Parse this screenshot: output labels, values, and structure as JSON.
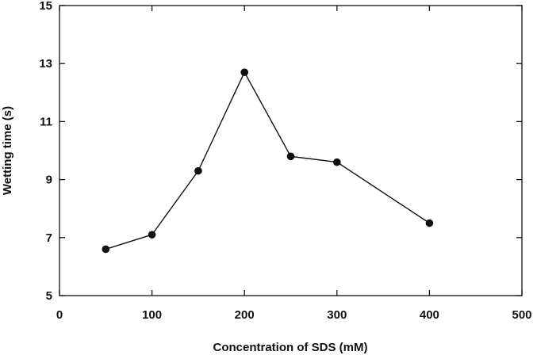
{
  "chart_data": {
    "type": "line",
    "title": "",
    "xlabel": "Concentration of SDS (mM)",
    "ylabel": "Wetting time (s)",
    "xlim": [
      0,
      500
    ],
    "ylim": [
      5,
      15
    ],
    "xticks": [
      0,
      100,
      200,
      300,
      400,
      500
    ],
    "yticks": [
      5,
      7,
      9,
      11,
      13,
      15
    ],
    "grid": false,
    "legend": "none",
    "series": [
      {
        "name": "Wetting time",
        "x": [
          50,
          100,
          150,
          200,
          250,
          300,
          400
        ],
        "y": [
          6.6,
          7.1,
          9.3,
          12.7,
          9.8,
          9.6,
          7.5
        ]
      }
    ]
  }
}
